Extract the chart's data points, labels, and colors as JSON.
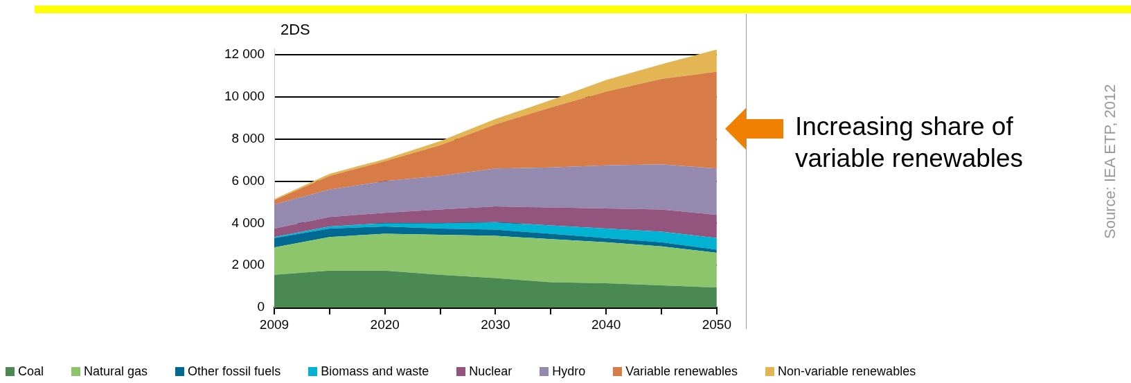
{
  "chart_data": {
    "type": "area",
    "title": "2DS",
    "stacked": true,
    "categories": [
      "2009",
      null,
      "2020",
      null,
      "2030",
      null,
      "2040",
      null,
      "2050"
    ],
    "series": [
      {
        "name": "Coal",
        "color": "#4a8a52",
        "values": [
          1550,
          1750,
          1750,
          1550,
          1400,
          1200,
          1150,
          1050,
          950
        ]
      },
      {
        "name": "Natural gas",
        "color": "#8cc56a",
        "values": [
          1300,
          1600,
          1750,
          1900,
          2000,
          2050,
          1950,
          1850,
          1650
        ]
      },
      {
        "name": "Other fossil fuels",
        "color": "#006991",
        "values": [
          450,
          400,
          350,
          300,
          300,
          250,
          200,
          200,
          150
        ]
      },
      {
        "name": "Biomass and waste",
        "color": "#00b3d3",
        "values": [
          50,
          100,
          150,
          250,
          350,
          400,
          450,
          500,
          550
        ]
      },
      {
        "name": "Nuclear",
        "color": "#93547d",
        "values": [
          400,
          450,
          500,
          650,
          750,
          850,
          950,
          1050,
          1100
        ]
      },
      {
        "name": "Hydro",
        "color": "#948aaf",
        "values": [
          1150,
          1300,
          1500,
          1600,
          1800,
          1900,
          2050,
          2150,
          2200
        ]
      },
      {
        "name": "Variable renewables",
        "color": "#d77c47",
        "values": [
          200,
          650,
          950,
          1450,
          2100,
          2850,
          3500,
          4050,
          4600
        ]
      },
      {
        "name": "Non-variable renewables",
        "color": "#e3b653",
        "values": [
          50,
          100,
          100,
          200,
          250,
          350,
          550,
          700,
          1050
        ]
      }
    ],
    "yticks": [
      0,
      {
        "value": 2000,
        "label": "2 000"
      },
      {
        "value": 4000,
        "label": "4 000"
      },
      {
        "value": 6000,
        "label": "6 000"
      },
      {
        "value": 8000,
        "label": "8 000"
      },
      {
        "value": 10000,
        "label": "10 000"
      },
      {
        "value": 12000,
        "label": "12 000"
      }
    ],
    "ylim": [
      0,
      12300
    ],
    "grid": "y",
    "legend": "bottom",
    "annotations": [
      "Increasing share of variable renewables",
      "Source: IEA ETP, 2012"
    ]
  }
}
